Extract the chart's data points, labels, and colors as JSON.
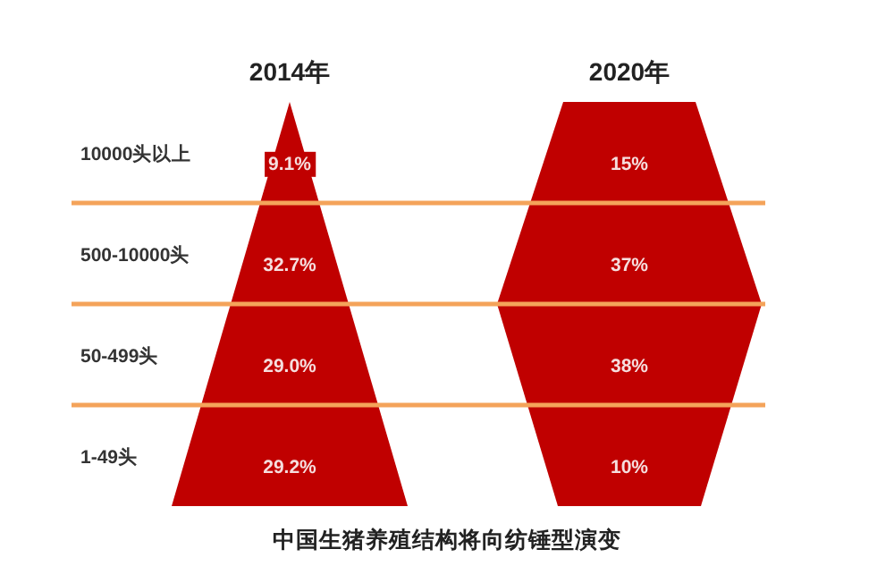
{
  "chart_data": {
    "type": "other",
    "categories": [
      "10000头以上",
      "500-10000头",
      "50-499头",
      "1-49头"
    ],
    "series": [
      {
        "name": "2014年",
        "color": "#c00000",
        "values": [
          9.1,
          32.7,
          29.0,
          29.2
        ],
        "value_labels": [
          "9.1%",
          "32.7%",
          "29.0%",
          "29.2%"
        ]
      },
      {
        "name": "2020年",
        "color": "#c00000",
        "values": [
          15,
          37,
          38,
          10
        ],
        "value_labels": [
          "15%",
          "37%",
          "38%",
          "10%"
        ]
      }
    ],
    "annotations": [
      "中国生猪养殖结构将向纺锤型演变"
    ]
  }
}
